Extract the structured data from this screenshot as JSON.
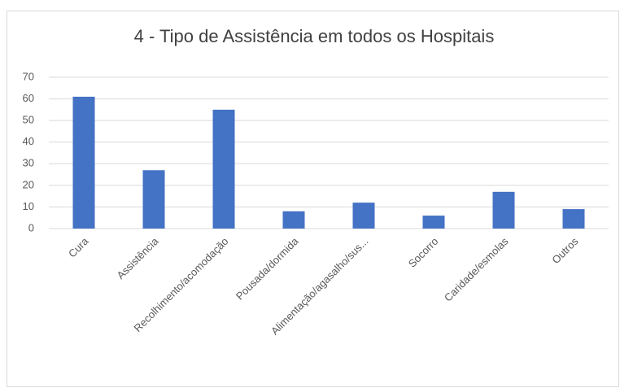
{
  "chart_data": {
    "type": "bar",
    "title": "4 - Tipo de Assistência em todos os Hospitais",
    "categories": [
      "Cura",
      "Assistência",
      "Recolhimento/acomodação",
      "Pousada/dormida",
      "Alimentação/agasalho/sus...",
      "Socorro",
      "Caridade/esmolas",
      "Outros"
    ],
    "values": [
      61,
      27,
      55,
      8,
      12,
      6,
      17,
      9
    ],
    "color": "#4472c4",
    "ylim": [
      0,
      70
    ],
    "yticks": [
      0,
      10,
      20,
      30,
      40,
      50,
      60,
      70
    ],
    "grid": true
  }
}
